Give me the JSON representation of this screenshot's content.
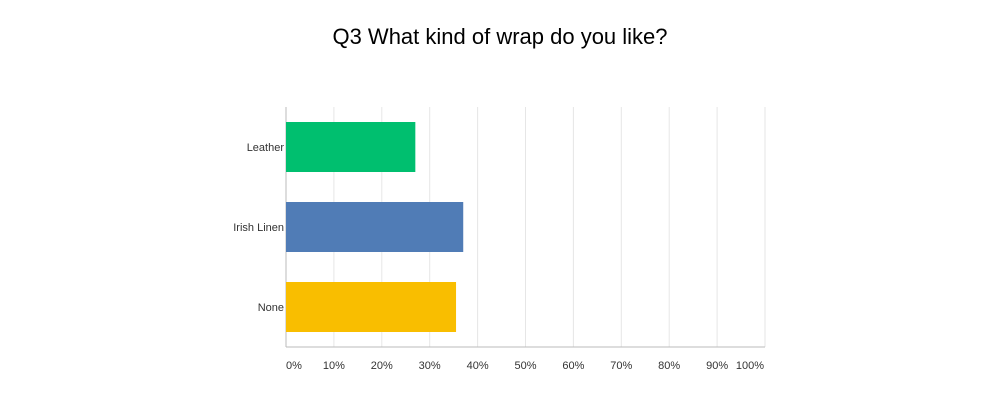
{
  "chart_data": {
    "type": "bar",
    "orientation": "horizontal",
    "title": "Q3 What kind of wrap do you like?",
    "categories": [
      "Leather",
      "Irish Linen",
      "None"
    ],
    "values": [
      27,
      37,
      35.5
    ],
    "colors": [
      "#00bf6f",
      "#507cb6",
      "#f9be00"
    ],
    "xlim": [
      0,
      100
    ],
    "xticks": [
      {
        "value": 0,
        "label": "0%"
      },
      {
        "value": 10,
        "label": "10%"
      },
      {
        "value": 20,
        "label": "20%"
      },
      {
        "value": 30,
        "label": "30%"
      },
      {
        "value": 40,
        "label": "40%"
      },
      {
        "value": 50,
        "label": "50%"
      },
      {
        "value": 60,
        "label": "60%"
      },
      {
        "value": 70,
        "label": "70%"
      },
      {
        "value": 80,
        "label": "80%"
      },
      {
        "value": 90,
        "label": "90%"
      },
      {
        "value": 100,
        "label": "100%"
      }
    ],
    "grid": true
  }
}
